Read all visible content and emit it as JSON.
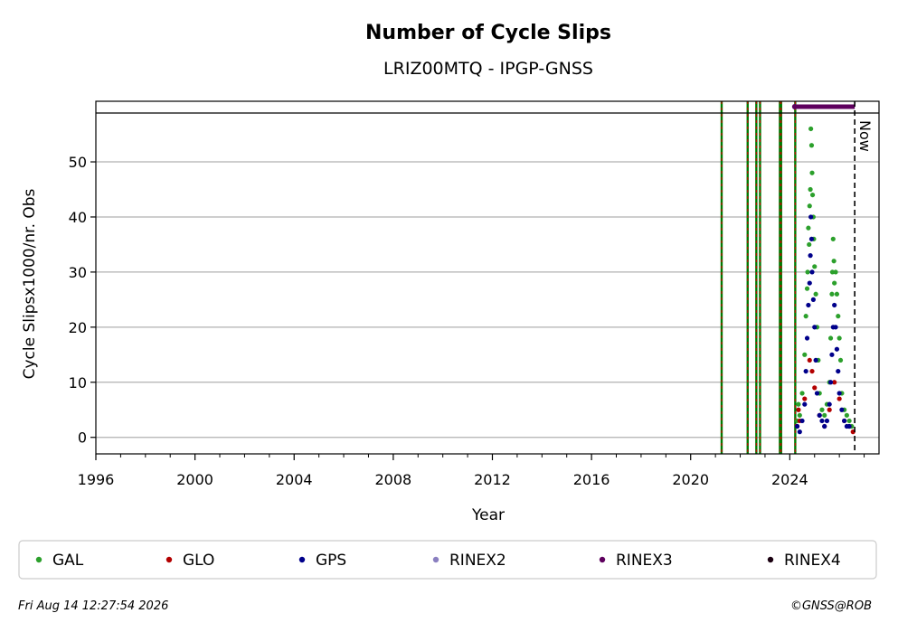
{
  "chart_data": {
    "type": "scatter",
    "title": "Number of Cycle Slips",
    "subtitle": "LRIZ00MTQ - IPGP-GNSS",
    "xlabel": "Year",
    "ylabel": "Cycle Slipsx1000/nr. Obs",
    "xlim": [
      1996,
      2027.6
    ],
    "ylim": [
      -3,
      61
    ],
    "x_ticks": [
      "1996",
      "2000",
      "2004",
      "2008",
      "2012",
      "2016",
      "2020",
      "2024"
    ],
    "y_ticks": [
      "0",
      "10",
      "20",
      "30",
      "40",
      "50"
    ],
    "grid": "horizontal",
    "now_label": "Now",
    "now_x": 2026.62,
    "rinex3_range": [
      2024.2,
      2026.62
    ],
    "event_lines": [
      2021.25,
      2022.3,
      2022.65,
      2022.8,
      2023.6,
      2023.65,
      2024.22
    ],
    "colors": {
      "GAL": "#2ca02c",
      "GLO": "#b30000",
      "GPS": "#00008b",
      "RINEX2": "#8a7fc0",
      "RINEX3": "#5e005e",
      "RINEX4": "#1a0010",
      "event_green": "#007a00",
      "event_red": "#cc0000"
    },
    "series": [
      {
        "name": "GAL",
        "points": [
          [
            2024.3,
            3
          ],
          [
            2024.35,
            6
          ],
          [
            2024.4,
            4
          ],
          [
            2024.5,
            8
          ],
          [
            2024.6,
            15
          ],
          [
            2024.65,
            22
          ],
          [
            2024.7,
            27
          ],
          [
            2024.72,
            30
          ],
          [
            2024.75,
            38
          ],
          [
            2024.78,
            35
          ],
          [
            2024.8,
            42
          ],
          [
            2024.83,
            45
          ],
          [
            2024.85,
            56
          ],
          [
            2024.88,
            53
          ],
          [
            2024.9,
            48
          ],
          [
            2024.92,
            44
          ],
          [
            2024.95,
            40
          ],
          [
            2024.97,
            36
          ],
          [
            2025.0,
            31
          ],
          [
            2025.05,
            26
          ],
          [
            2025.1,
            20
          ],
          [
            2025.15,
            14
          ],
          [
            2025.2,
            8
          ],
          [
            2025.3,
            5
          ],
          [
            2025.4,
            4
          ],
          [
            2025.5,
            6
          ],
          [
            2025.6,
            10
          ],
          [
            2025.65,
            18
          ],
          [
            2025.7,
            26
          ],
          [
            2025.72,
            30
          ],
          [
            2025.75,
            36
          ],
          [
            2025.78,
            32
          ],
          [
            2025.8,
            28
          ],
          [
            2025.85,
            30
          ],
          [
            2025.9,
            26
          ],
          [
            2025.95,
            22
          ],
          [
            2026.0,
            18
          ],
          [
            2026.05,
            14
          ],
          [
            2026.1,
            8
          ],
          [
            2026.2,
            5
          ],
          [
            2026.3,
            4
          ],
          [
            2026.4,
            3
          ],
          [
            2026.5,
            2
          ]
        ]
      },
      {
        "name": "GLO",
        "points": [
          [
            2024.3,
            2
          ],
          [
            2024.35,
            5
          ],
          [
            2024.4,
            3
          ],
          [
            2024.6,
            7
          ],
          [
            2024.8,
            14
          ],
          [
            2024.9,
            12
          ],
          [
            2025.0,
            9
          ],
          [
            2025.2,
            4
          ],
          [
            2025.4,
            2
          ],
          [
            2025.6,
            5
          ],
          [
            2025.8,
            10
          ],
          [
            2026.0,
            7
          ],
          [
            2026.2,
            3
          ],
          [
            2026.4,
            2
          ],
          [
            2026.55,
            1
          ]
        ]
      },
      {
        "name": "GPS",
        "points": [
          [
            2024.3,
            2
          ],
          [
            2024.4,
            1
          ],
          [
            2024.5,
            3
          ],
          [
            2024.6,
            6
          ],
          [
            2024.65,
            12
          ],
          [
            2024.7,
            18
          ],
          [
            2024.75,
            24
          ],
          [
            2024.8,
            28
          ],
          [
            2024.83,
            33
          ],
          [
            2024.85,
            40
          ],
          [
            2024.88,
            36
          ],
          [
            2024.9,
            30
          ],
          [
            2024.95,
            25
          ],
          [
            2025.0,
            20
          ],
          [
            2025.05,
            14
          ],
          [
            2025.1,
            8
          ],
          [
            2025.2,
            4
          ],
          [
            2025.3,
            3
          ],
          [
            2025.4,
            2
          ],
          [
            2025.5,
            3
          ],
          [
            2025.6,
            6
          ],
          [
            2025.65,
            10
          ],
          [
            2025.7,
            15
          ],
          [
            2025.75,
            20
          ],
          [
            2025.8,
            24
          ],
          [
            2025.85,
            20
          ],
          [
            2025.9,
            16
          ],
          [
            2025.95,
            12
          ],
          [
            2026.0,
            8
          ],
          [
            2026.1,
            5
          ],
          [
            2026.2,
            3
          ],
          [
            2026.3,
            2
          ],
          [
            2026.4,
            2
          ]
        ]
      }
    ],
    "legend": [
      "GAL",
      "GLO",
      "GPS",
      "RINEX2",
      "RINEX3",
      "RINEX4"
    ],
    "legend_position": "bottom"
  },
  "footer": {
    "timestamp": "Fri Aug 14 12:27:54 2026",
    "credit": "©GNSS@ROB"
  }
}
